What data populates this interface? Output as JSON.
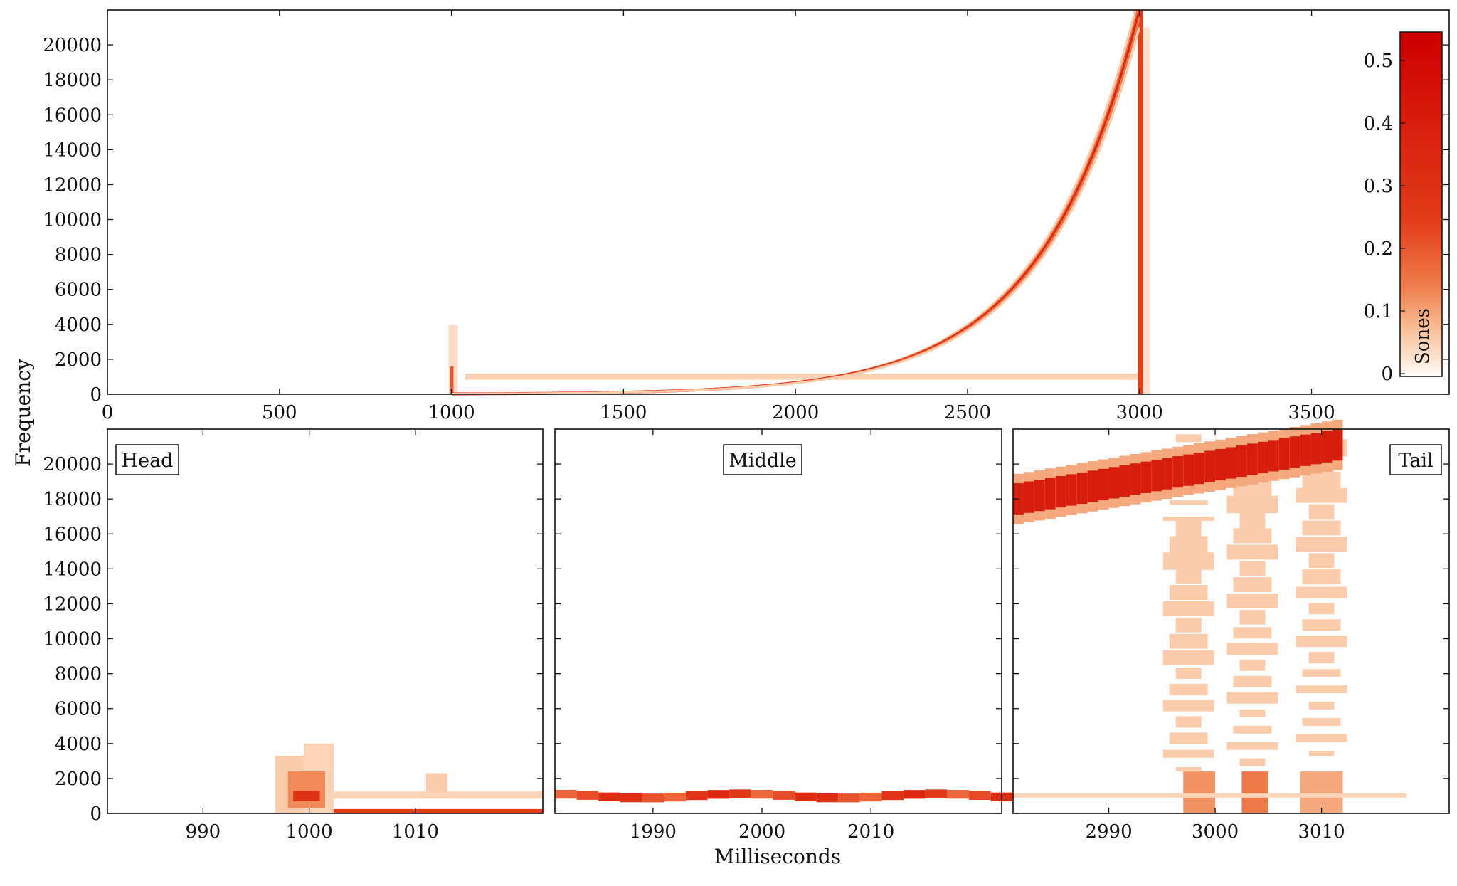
{
  "chart_data": [
    {
      "panel": "overview",
      "type": "heatmap",
      "xlim": [
        0,
        3900
      ],
      "ylim": [
        0,
        22000
      ],
      "x_ticks": [
        0,
        500,
        1000,
        1500,
        2000,
        2500,
        3000,
        3500
      ],
      "y_ticks": [
        0,
        2000,
        4000,
        6000,
        8000,
        10000,
        12000,
        14000,
        16000,
        18000,
        20000
      ],
      "colorbar": {
        "label": "Sones",
        "range": [
          0,
          0.55
        ],
        "ticks": [
          0,
          0.1,
          0.2,
          0.3,
          0.4,
          0.5
        ]
      },
      "features": {
        "tone": {
          "description": "steady tone",
          "start_ms": 1000,
          "end_ms": 3000,
          "frequency": 1000,
          "level": 0.05
        },
        "sweep": {
          "description": "exponential sweep",
          "start_ms": 1000,
          "end_ms": 3000,
          "start_freq": 20,
          "end_freq": 22000,
          "level": 0.35
        },
        "onset_click_ms": 1000,
        "offset_click_ms": 3000
      }
    },
    {
      "panel": "head",
      "label": "Head",
      "type": "heatmap",
      "xlim": [
        981,
        1022
      ],
      "ylim": [
        0,
        22000
      ],
      "x_ticks": [
        990,
        1000,
        1010
      ],
      "cells": [
        {
          "x0": 996.8,
          "x1": 999.5,
          "y0": 0,
          "y1": 3300,
          "level": 0.06
        },
        {
          "x0": 999.5,
          "x1": 1002.3,
          "y0": 0,
          "y1": 4000,
          "level": 0.05
        },
        {
          "x0": 998,
          "x1": 1001.5,
          "y0": 300,
          "y1": 2400,
          "level": 0.13
        },
        {
          "x0": 998.5,
          "x1": 1001,
          "y0": 700,
          "y1": 1300,
          "level": 0.3
        },
        {
          "x0": 1002.3,
          "x1": 1022,
          "y0": 850,
          "y1": 1250,
          "level": 0.05
        },
        {
          "x0": 1002.3,
          "x1": 1022,
          "y0": 0,
          "y1": 250,
          "level": 0.25
        },
        {
          "x0": 1011,
          "x1": 1013,
          "y0": 1200,
          "y1": 2300,
          "level": 0.06
        }
      ]
    },
    {
      "panel": "middle",
      "label": "Middle",
      "type": "heatmap",
      "xlim": [
        1981,
        2022
      ],
      "ylim": [
        0,
        22000
      ],
      "x_ticks": [
        1990,
        2000,
        2010
      ],
      "band": {
        "y0": 750,
        "y1": 1250,
        "level": 0.35
      }
    },
    {
      "panel": "tail",
      "label": "Tail",
      "type": "heatmap",
      "xlim": [
        2981,
        3022
      ],
      "ylim": [
        0,
        22000
      ],
      "x_ticks": [
        2990,
        3000,
        3010
      ],
      "sweep": {
        "x0": 2981,
        "x1": 3012,
        "y_start": 18000,
        "y_end": 21200,
        "halfwidth": 900,
        "level": 0.4
      },
      "tone": {
        "x0": 2981,
        "x1": 3018,
        "y0": 900,
        "y1": 1150,
        "level": 0.05
      },
      "scatter_columns": [
        2997.5,
        3003.5,
        3010
      ],
      "scatter_level": 0.06,
      "bursts": [
        {
          "x0": 2997,
          "x1": 3000,
          "y0": 0,
          "y1": 2400,
          "level": 0.12
        },
        {
          "x0": 3002.5,
          "x1": 3005,
          "y0": 0,
          "y1": 2400,
          "level": 0.15
        },
        {
          "x0": 3008,
          "x1": 3012,
          "y0": 0,
          "y1": 2400,
          "level": 0.1
        }
      ]
    }
  ],
  "axes": {
    "ylabel": "Frequency",
    "xlabel": "Milliseconds"
  }
}
